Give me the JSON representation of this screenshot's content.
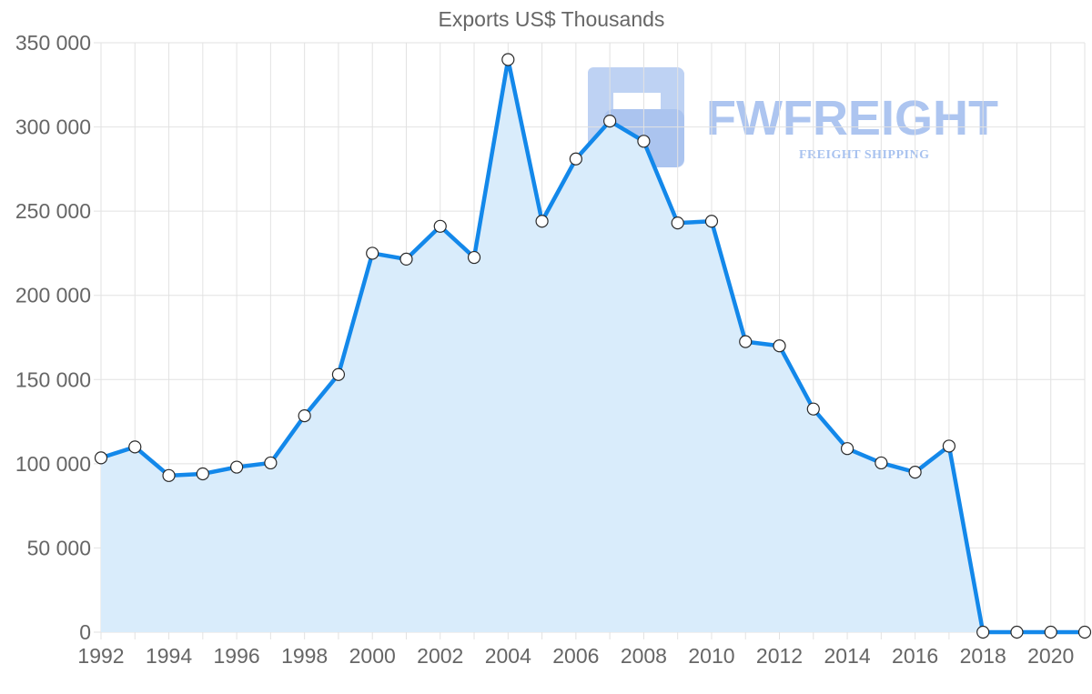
{
  "chart_data": {
    "type": "line",
    "title": "Exports US$ Thousands",
    "xlabel": "",
    "ylabel": "",
    "x": [
      1992,
      1993,
      1994,
      1995,
      1996,
      1997,
      1998,
      1999,
      2000,
      2001,
      2002,
      2003,
      2004,
      2005,
      2006,
      2007,
      2008,
      2009,
      2010,
      2011,
      2012,
      2013,
      2014,
      2015,
      2016,
      2017,
      2018,
      2019,
      2020,
      2021
    ],
    "x_tick_labels": [
      "1992",
      "1994",
      "1996",
      "1998",
      "2000",
      "2002",
      "2004",
      "2006",
      "2008",
      "2010",
      "2012",
      "2014",
      "2016",
      "2018",
      "2020"
    ],
    "y_tick_labels": [
      "350 000",
      "300 000",
      "250 000",
      "200 000",
      "150 000",
      "100 000",
      "50 000",
      "0"
    ],
    "y_ticks": [
      350000,
      300000,
      250000,
      200000,
      150000,
      100000,
      50000,
      0
    ],
    "ylim": [
      0,
      350000
    ],
    "xlim": [
      1992,
      2021
    ],
    "grid": true,
    "series": [
      {
        "name": "Exports",
        "values": [
          103500,
          110000,
          93000,
          94000,
          98000,
          100500,
          128500,
          153000,
          225000,
          221500,
          241000,
          222500,
          340000,
          244000,
          281000,
          303500,
          291500,
          243000,
          244000,
          172500,
          170000,
          132500,
          109000,
          100500,
          95000,
          110500,
          0,
          0,
          0,
          0
        ]
      }
    ]
  },
  "watermark": {
    "name": "FWFREIGHT",
    "tagline": "FREIGHT SHIPPING"
  },
  "colors": {
    "line": "#1388ea",
    "fill": "#d9ecfb"
  }
}
